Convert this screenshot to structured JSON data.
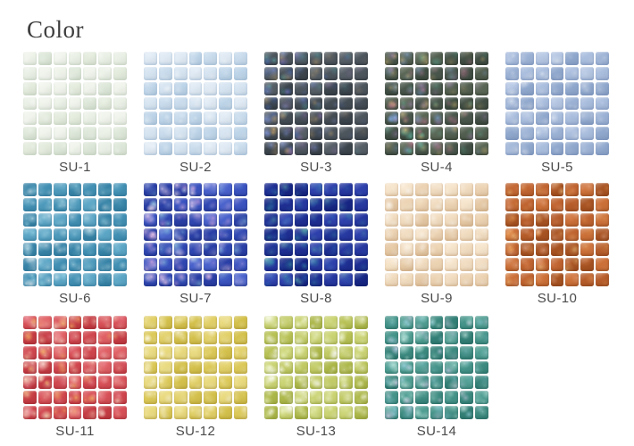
{
  "page": {
    "title": "Color"
  },
  "palette": {
    "background": "#ffffff",
    "title_color": "#3d3d3d",
    "label_color": "#4b4b4b",
    "grout": "#ffffff"
  },
  "grid": {
    "rows": 7,
    "cols": 7,
    "swatches_per_row": 5
  },
  "swatches": [
    {
      "label": "SU-1",
      "base": [
        "#e3ebdd",
        "#eaf0e6",
        "#dde7d9",
        "#f0f4ec"
      ],
      "fleck": [
        "#ffffff",
        "#f7faf2",
        "#e8f0e0"
      ],
      "shade": "#b9c9b4",
      "intensity": 0.5,
      "bias": 0.35
    },
    {
      "label": "SU-2",
      "base": [
        "#c8dbec",
        "#d6e4f1",
        "#bdd4e8",
        "#e0eaf4"
      ],
      "fleck": [
        "#ffffff",
        "#eff6fc",
        "#dceaf5"
      ],
      "shade": "#94b2d0",
      "intensity": 0.5,
      "bias": 0.4
    },
    {
      "label": "SU-3",
      "base": [
        "#4d555d",
        "#444c54",
        "#565e66",
        "#3c444c"
      ],
      "fleck": [
        "#7b90cf",
        "#9678bc",
        "#58a8ac",
        "#c8a873",
        "#4a6ab0"
      ],
      "shade": "#23292f",
      "intensity": 0.85,
      "bias": 0.75
    },
    {
      "label": "SU-4",
      "base": [
        "#525e4f",
        "#49564b",
        "#5b6756",
        "#414e44"
      ],
      "fleck": [
        "#b68fd0",
        "#82a8dc",
        "#cdb473",
        "#62b29d",
        "#c87898"
      ],
      "shade": "#242e24",
      "intensity": 0.8,
      "bias": 0.55
    },
    {
      "label": "SU-5",
      "base": [
        "#9cb2d5",
        "#a9bddd",
        "#90a8cd",
        "#b4c6e2"
      ],
      "fleck": [
        "#e2eaf6",
        "#ffffff",
        "#cddaf0"
      ],
      "shade": "#6d88b4",
      "intensity": 0.55,
      "bias": 0.45
    },
    {
      "label": "SU-6",
      "base": [
        "#4e9abc",
        "#4290b4",
        "#5ca6c6",
        "#3884a8"
      ],
      "fleck": [
        "#cfeaf2",
        "#ffffff",
        "#9ed8e8",
        "#bce4ee"
      ],
      "shade": "#266f92",
      "intensity": 0.7,
      "bias": 0.45
    },
    {
      "label": "SU-7",
      "base": [
        "#3a53c0",
        "#2f47b2",
        "#4962cc",
        "#2a3fa6"
      ],
      "fleck": [
        "#dcabe0",
        "#f0cdef",
        "#a4b8ec",
        "#f6e4f4",
        "#8ccde0"
      ],
      "shade": "#16266e",
      "intensity": 0.85,
      "bias": 0.5
    },
    {
      "label": "SU-8",
      "base": [
        "#2637a0",
        "#1e2e92",
        "#2e40ac",
        "#172684"
      ],
      "fleck": [
        "#3ba2aa",
        "#63c2b2",
        "#4f7ecb",
        "#2e6ab8"
      ],
      "shade": "#0c1860",
      "intensity": 0.7,
      "bias": 0.6
    },
    {
      "label": "SU-9",
      "base": [
        "#ebd1b0",
        "#f1dcc0",
        "#e5c8a4",
        "#f6e4cb"
      ],
      "fleck": [
        "#fdf4e4",
        "#ffffff",
        "#f4e0bc"
      ],
      "shade": "#c29c70",
      "intensity": 0.6,
      "bias": 0.4
    },
    {
      "label": "SU-10",
      "base": [
        "#c06430",
        "#b65c2a",
        "#cc7038",
        "#a85322"
      ],
      "fleck": [
        "#f2a960",
        "#ecba9e",
        "#f8d28e",
        "#e08a5c"
      ],
      "shade": "#7c3a14",
      "intensity": 0.75,
      "bias": 0.5
    },
    {
      "label": "SU-11",
      "base": [
        "#d85058",
        "#d0464e",
        "#e06065",
        "#c63c44"
      ],
      "fleck": [
        "#f6b667",
        "#f9dcd2",
        "#f191a0",
        "#ffe9d2",
        "#f8c8b0"
      ],
      "shade": "#96242c",
      "intensity": 0.85,
      "bias": 0.3
    },
    {
      "label": "SU-12",
      "base": [
        "#dcc958",
        "#e2d068",
        "#d4c14c",
        "#e9da7e"
      ],
      "fleck": [
        "#faf2c4",
        "#ffffff",
        "#f0e69e"
      ],
      "shade": "#a68f2c",
      "intensity": 0.7,
      "bias": 0.45
    },
    {
      "label": "SU-13",
      "base": [
        "#c1ca64",
        "#b8c255",
        "#cbd474",
        "#adb84a"
      ],
      "fleck": [
        "#f4f8da",
        "#ffffff",
        "#e6eeb2"
      ],
      "shade": "#85922f",
      "intensity": 0.85,
      "bias": 0.25
    },
    {
      "label": "SU-14",
      "base": [
        "#45948a",
        "#3c8a80",
        "#509e93",
        "#338077"
      ],
      "fleck": [
        "#aedfd6",
        "#cdf0e8",
        "#93cedb",
        "#ddd0ec"
      ],
      "shade": "#1c5c54",
      "intensity": 0.8,
      "bias": 0.4
    }
  ]
}
